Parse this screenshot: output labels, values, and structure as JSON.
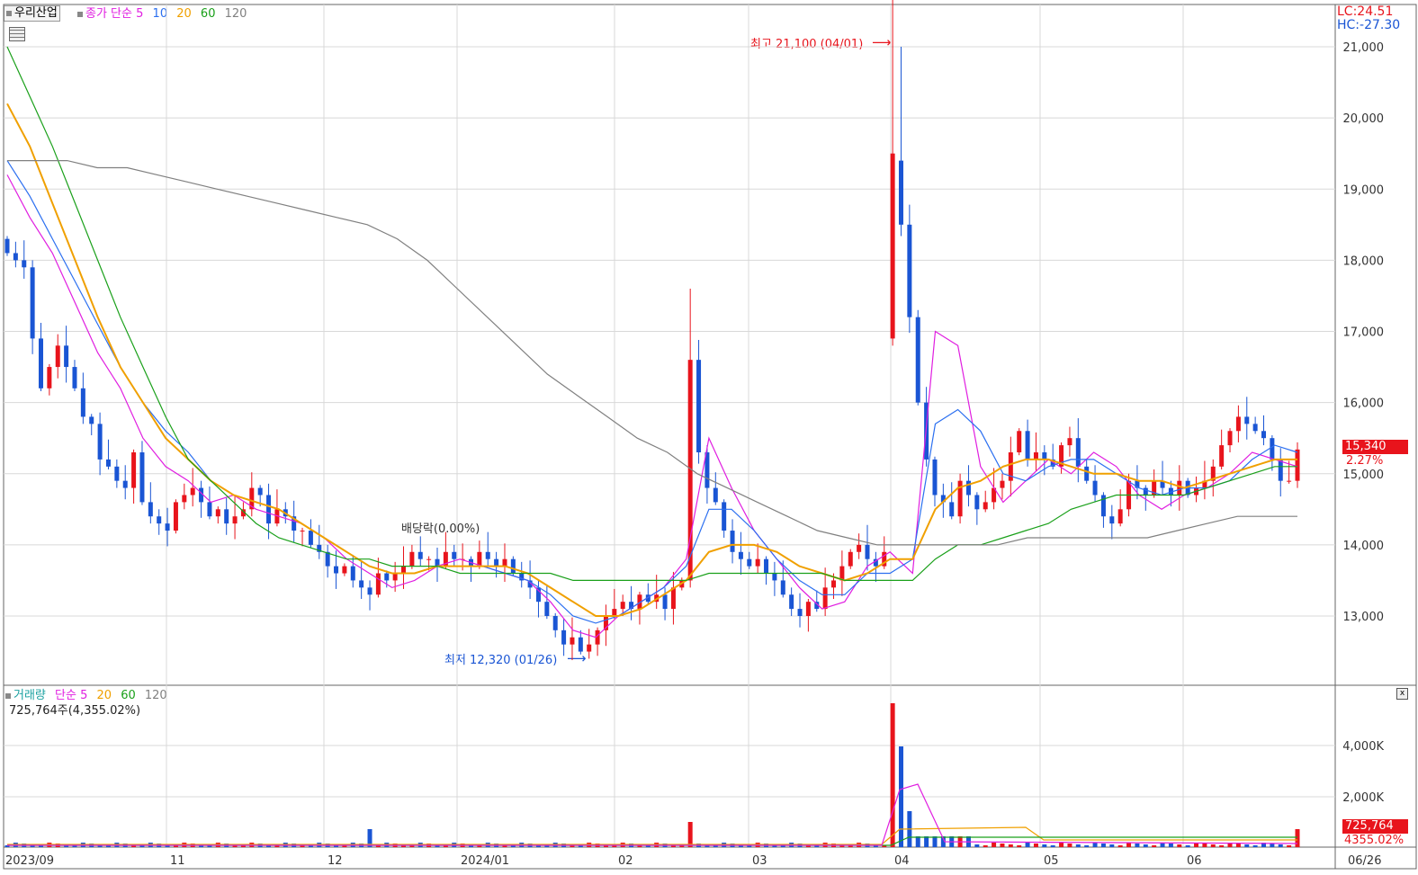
{
  "price_panel": {
    "stock_name": "우리산업",
    "legend_prefix": "종가 단순",
    "ma_periods": [
      "5",
      "10",
      "20",
      "60",
      "120"
    ],
    "ma_colors": [
      "#e01ee0",
      "#2b6ff0",
      "#f0a000",
      "#1aa01a",
      "#808080"
    ],
    "lc_label": "LC:24.51",
    "hc_label": "HC:-27.30",
    "high_annotation": "최고 21,100 (04/01)",
    "low_annotation": "최저 12,320 (01/26)",
    "dividend_annotation": "배당락(0.00%)",
    "current_price_tag": "15,340",
    "change_pct": "2.27%",
    "y_ticks": [
      "21,000",
      "20,000",
      "19,000",
      "18,000",
      "17,000",
      "16,000",
      "15,000",
      "14,000",
      "13,000"
    ]
  },
  "volume_panel": {
    "legend_name": "거래량",
    "legend_prefix": "단순",
    "ma_periods": [
      "5",
      "20",
      "60",
      "120"
    ],
    "volume_readout": "725,764주(4,355.02%)",
    "y_ticks": [
      "4,000K",
      "2,000K"
    ],
    "current_volume_tag": "725,764",
    "current_pct_tag": "4355.02%"
  },
  "x_axis": {
    "labels": [
      "2023/09",
      "11",
      "12",
      "2024/01",
      "02",
      "03",
      "04",
      "05",
      "06",
      "06/26"
    ]
  },
  "colors": {
    "up": "#e8141c",
    "down": "#1a55d4",
    "grid": "#d8d8d8"
  },
  "chart_data": {
    "type": "candlestick",
    "title": "우리산업",
    "x_range": [
      "2023/09",
      "06/26"
    ],
    "y_range": [
      12320,
      21100
    ],
    "price_high": 21100,
    "price_high_date": "04/01",
    "price_low": 12320,
    "price_low_date": "01/26",
    "last_close": 15340,
    "last_change_pct": 2.27,
    "last_volume": 725764,
    "last_volume_pct": 4355.02,
    "series": [
      {
        "name": "5",
        "points": [
          19200,
          18600,
          18100,
          17400,
          16700,
          16200,
          15500,
          15100,
          14900,
          14600,
          14700,
          14500,
          14400,
          14300,
          14100,
          13800,
          13600,
          13400,
          13500,
          13700,
          13800,
          13700,
          13600,
          13500,
          13200,
          12800,
          12700,
          13000,
          13200,
          13400,
          13800,
          15500,
          14800,
          14200,
          13800,
          13400,
          13100,
          13200,
          13700,
          13900,
          13600,
          17000,
          16800,
          15100,
          14600,
          14900,
          15200,
          15000,
          15300,
          15100,
          14700,
          14500,
          14700,
          14800,
          15000,
          15300,
          15200,
          15100
        ]
      },
      {
        "name": "10",
        "points": [
          19400,
          18900,
          18300,
          17700,
          17100,
          16500,
          16000,
          15600,
          15300,
          14900,
          14700,
          14600,
          14500,
          14300,
          14100,
          13900,
          13700,
          13600,
          13600,
          13700,
          13700,
          13700,
          13600,
          13500,
          13300,
          13000,
          12900,
          13000,
          13200,
          13400,
          13700,
          14500,
          14500,
          14200,
          13800,
          13500,
          13300,
          13300,
          13600,
          13600,
          13800,
          15700,
          15900,
          15600,
          15000,
          14900,
          15100,
          15200,
          15200,
          15000,
          14800,
          14700,
          14800,
          14800,
          14900,
          15200,
          15400,
          15300
        ]
      },
      {
        "name": "20",
        "points": [
          20200,
          19600,
          18800,
          18000,
          17200,
          16500,
          16000,
          15500,
          15200,
          14900,
          14700,
          14600,
          14500,
          14300,
          14100,
          13900,
          13700,
          13600,
          13600,
          13700,
          13700,
          13700,
          13700,
          13600,
          13400,
          13200,
          13000,
          13000,
          13100,
          13300,
          13500,
          13900,
          14000,
          14000,
          13900,
          13700,
          13600,
          13500,
          13600,
          13800,
          13800,
          14500,
          14800,
          14900,
          15100,
          15200,
          15200,
          15100,
          15000,
          15000,
          14900,
          14900,
          14800,
          14900,
          15000,
          15100,
          15200,
          15200
        ]
      },
      {
        "name": "60",
        "points": [
          21000,
          20300,
          19600,
          18800,
          18000,
          17200,
          16500,
          15800,
          15200,
          14900,
          14600,
          14300,
          14100,
          14000,
          13900,
          13800,
          13800,
          13700,
          13700,
          13700,
          13600,
          13600,
          13600,
          13600,
          13600,
          13500,
          13500,
          13500,
          13500,
          13500,
          13500,
          13600,
          13600,
          13600,
          13600,
          13600,
          13600,
          13500,
          13500,
          13500,
          13500,
          13800,
          14000,
          14000,
          14100,
          14200,
          14300,
          14500,
          14600,
          14700,
          14700,
          14700,
          14700,
          14800,
          14900,
          15000,
          15100,
          15100
        ]
      },
      {
        "name": "120",
        "points": [
          19400,
          19400,
          19400,
          19300,
          19300,
          19200,
          19100,
          19000,
          18900,
          18800,
          18700,
          18600,
          18500,
          18300,
          18000,
          17600,
          17200,
          16800,
          16400,
          16100,
          15800,
          15500,
          15300,
          15000,
          14800,
          14600,
          14400,
          14200,
          14100,
          14000,
          14000,
          14000,
          14000,
          14000,
          14100,
          14100,
          14100,
          14100,
          14100,
          14200,
          14300,
          14400,
          14400,
          14400
        ]
      }
    ]
  }
}
